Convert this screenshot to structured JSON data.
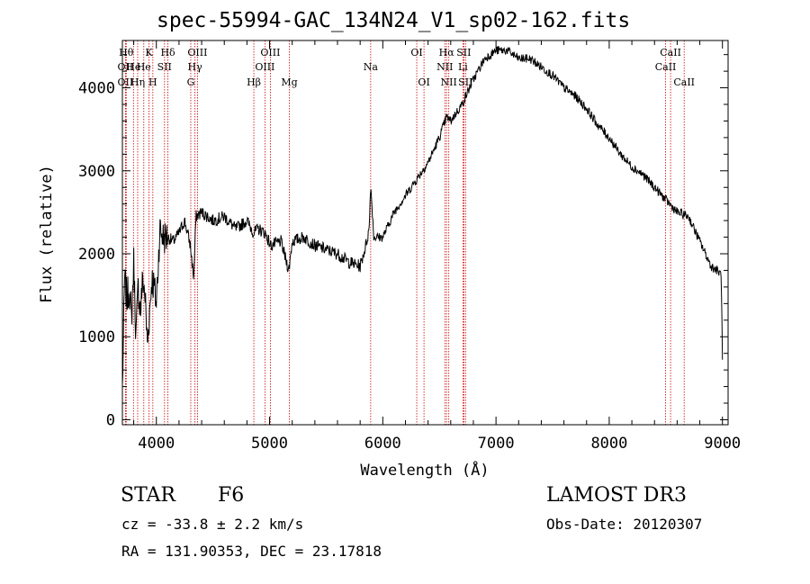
{
  "chart_data": {
    "type": "line",
    "title": "spec-55994-GAC_134N24_V1_sp02-162.fits",
    "xlabel": "Wavelength (Å)",
    "ylabel": "Flux (relative)",
    "xlim": [
      3700,
      9050
    ],
    "ylim": [
      -60,
      4570
    ],
    "xticks": [
      4000,
      5000,
      6000,
      7000,
      8000,
      9000
    ],
    "xtick_labels": [
      "4000",
      "5000",
      "6000",
      "7000",
      "8000",
      "9000"
    ],
    "yticks": [
      0,
      1000,
      2000,
      3000,
      4000
    ],
    "ytick_labels": [
      "0",
      "1000",
      "2000",
      "3000",
      "4000"
    ],
    "series": [
      {
        "name": "spectrum",
        "x": [
          3700,
          3720,
          3740,
          3760,
          3780,
          3800,
          3820,
          3840,
          3860,
          3880,
          3900,
          3920,
          3940,
          3960,
          3980,
          4000,
          4030,
          4060,
          4100,
          4150,
          4200,
          4250,
          4300,
          4330,
          4350,
          4400,
          4500,
          4600,
          4700,
          4800,
          4860,
          4900,
          4960,
          5010,
          5100,
          5170,
          5200,
          5300,
          5400,
          5500,
          5600,
          5700,
          5800,
          5850,
          5880,
          5893,
          5920,
          6000,
          6100,
          6200,
          6300,
          6400,
          6500,
          6563,
          6600,
          6700,
          6800,
          6900,
          7000,
          7100,
          7200,
          7300,
          7400,
          7500,
          7600,
          7700,
          7800,
          7900,
          8000,
          8100,
          8200,
          8300,
          8400,
          8500,
          8600,
          8700,
          8750,
          8800,
          8850,
          8900,
          8950,
          8990,
          9000
        ],
        "values": [
          380,
          1700,
          1450,
          1600,
          1200,
          1900,
          1000,
          1600,
          1300,
          1700,
          1500,
          900,
          1300,
          1700,
          1600,
          1400,
          2300,
          2200,
          2200,
          2150,
          2250,
          2400,
          2100,
          1700,
          2450,
          2500,
          2400,
          2450,
          2300,
          2400,
          2250,
          2300,
          2250,
          2100,
          2150,
          1800,
          2150,
          2200,
          2100,
          2050,
          2000,
          1900,
          1850,
          2100,
          2300,
          2850,
          2200,
          2200,
          2500,
          2700,
          2900,
          3100,
          3400,
          3650,
          3600,
          3800,
          4100,
          4350,
          4450,
          4450,
          4350,
          4350,
          4250,
          4150,
          4000,
          3900,
          3750,
          3550,
          3400,
          3200,
          3050,
          2950,
          2800,
          2650,
          2500,
          2450,
          2300,
          2150,
          2000,
          1850,
          1800,
          1750,
          700
        ]
      }
    ],
    "lines": [
      {
        "wave": 3734,
        "labels": [
          "Hθ"
        ],
        "row": 1
      },
      {
        "wave": 3727,
        "labels": [
          "OII"
        ],
        "row": 2
      },
      {
        "wave": 3727,
        "labels": [
          "OII"
        ],
        "row": 3
      },
      {
        "wave": 3798,
        "labels": [
          "He"
        ],
        "row": 2
      },
      {
        "wave": 3835,
        "labels": [
          "Hη"
        ],
        "row": 3
      },
      {
        "wave": 3889,
        "labels": [
          "He"
        ],
        "row": 2
      },
      {
        "wave": 3934,
        "labels": [
          "K"
        ],
        "row": 1
      },
      {
        "wave": 3969,
        "labels": [
          "H"
        ],
        "row": 3
      },
      {
        "wave": 4072,
        "labels": [
          "SII"
        ],
        "row": 2
      },
      {
        "wave": 4102,
        "labels": [
          "Hδ"
        ],
        "row": 1
      },
      {
        "wave": 4304,
        "labels": [
          "G"
        ],
        "row": 3
      },
      {
        "wave": 4341,
        "labels": [
          "Hγ"
        ],
        "row": 2
      },
      {
        "wave": 4363,
        "labels": [
          "OIII"
        ],
        "row": 1
      },
      {
        "wave": 4861,
        "labels": [
          "Hβ"
        ],
        "row": 3
      },
      {
        "wave": 4959,
        "labels": [
          "OIII"
        ],
        "row": 2
      },
      {
        "wave": 5007,
        "labels": [
          "OIII"
        ],
        "row": 1
      },
      {
        "wave": 5175,
        "labels": [
          "Mg"
        ],
        "row": 3
      },
      {
        "wave": 5893,
        "labels": [
          "Na"
        ],
        "row": 2
      },
      {
        "wave": 6300,
        "labels": [
          "OI"
        ],
        "row": 1
      },
      {
        "wave": 6364,
        "labels": [
          "OI"
        ],
        "row": 3
      },
      {
        "wave": 6548,
        "labels": [
          "NII"
        ],
        "row": 2
      },
      {
        "wave": 6563,
        "labels": [
          "Hα"
        ],
        "row": 1
      },
      {
        "wave": 6583,
        "labels": [
          "NII"
        ],
        "row": 3
      },
      {
        "wave": 6708,
        "labels": [
          "Li"
        ],
        "row": 2
      },
      {
        "wave": 6716,
        "labels": [
          "SII"
        ],
        "row": 1
      },
      {
        "wave": 6731,
        "labels": [
          "SII"
        ],
        "row": 3
      },
      {
        "wave": 8498,
        "labels": [
          "CaII"
        ],
        "row": 2
      },
      {
        "wave": 8542,
        "labels": [
          "CaII"
        ],
        "row": 1
      },
      {
        "wave": 8662,
        "labels": [
          "CaII"
        ],
        "row": 3
      }
    ]
  },
  "info": {
    "object_class": "STAR",
    "subclass": "F6",
    "survey": "LAMOST DR3",
    "velocity": "cz = -33.8 ± 2.2 km/s",
    "obs_date": "Obs-Date: 20120307",
    "coords": "RA = 131.90353, DEC =  23.17818"
  },
  "colors": {
    "axis": "#000000",
    "spectrum": "#000000",
    "line_marker": "#cc0000",
    "background": "#ffffff"
  }
}
